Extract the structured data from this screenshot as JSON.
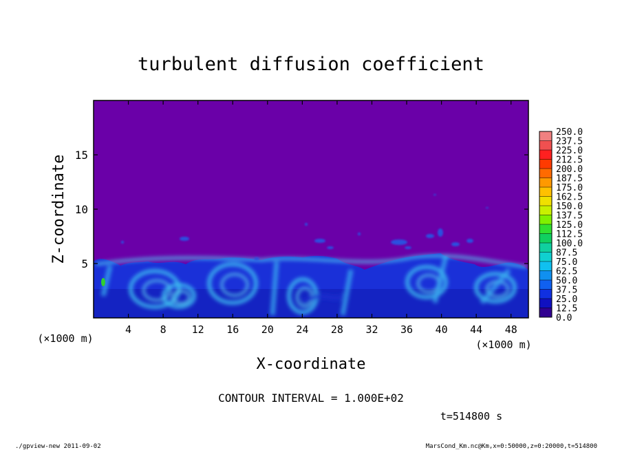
{
  "chart_data": {
    "type": "heatmap",
    "title": "turbulent diffusion coefficient",
    "xlabel": "X-coordinate",
    "ylabel": "Z-coordinate",
    "x_unit": "(×1000 m)",
    "y_unit": "(×1000 m)",
    "xlim": [
      0,
      50
    ],
    "ylim": [
      0,
      20
    ],
    "x_ticks": [
      "4",
      "8",
      "12",
      "16",
      "20",
      "24",
      "28",
      "32",
      "36",
      "40",
      "44",
      "48"
    ],
    "y_ticks": [
      "5",
      "10",
      "15"
    ],
    "colorbar": {
      "labels": [
        "250.0",
        "237.5",
        "225.0",
        "212.5",
        "200.0",
        "187.5",
        "175.0",
        "162.5",
        "150.0",
        "137.5",
        "125.0",
        "112.5",
        "100.0",
        "87.5",
        "75.0",
        "62.5",
        "50.0",
        "37.5",
        "25.0",
        "12.5",
        "0.0"
      ],
      "colors": [
        "#f08080",
        "#f05050",
        "#ff2020",
        "#ff3a00",
        "#ff6a00",
        "#ff9900",
        "#ffc000",
        "#f0e000",
        "#c8f000",
        "#80f000",
        "#30e030",
        "#10d060",
        "#10d0a0",
        "#10d0d0",
        "#10c0f0",
        "#1090f0",
        "#1060f0",
        "#1030e0",
        "#1010c0",
        "#300090"
      ]
    },
    "background_color": "#6a00a8",
    "contour_interval": "CONTOUR INTERVAL = 1.000E+02",
    "time_label": "t=514800 s"
  },
  "footer": {
    "left": "./gpview-new  2011-09-02",
    "right": "MarsCond_Km.nc@Km,x=0:50000,z=0:20000,t=514800"
  }
}
